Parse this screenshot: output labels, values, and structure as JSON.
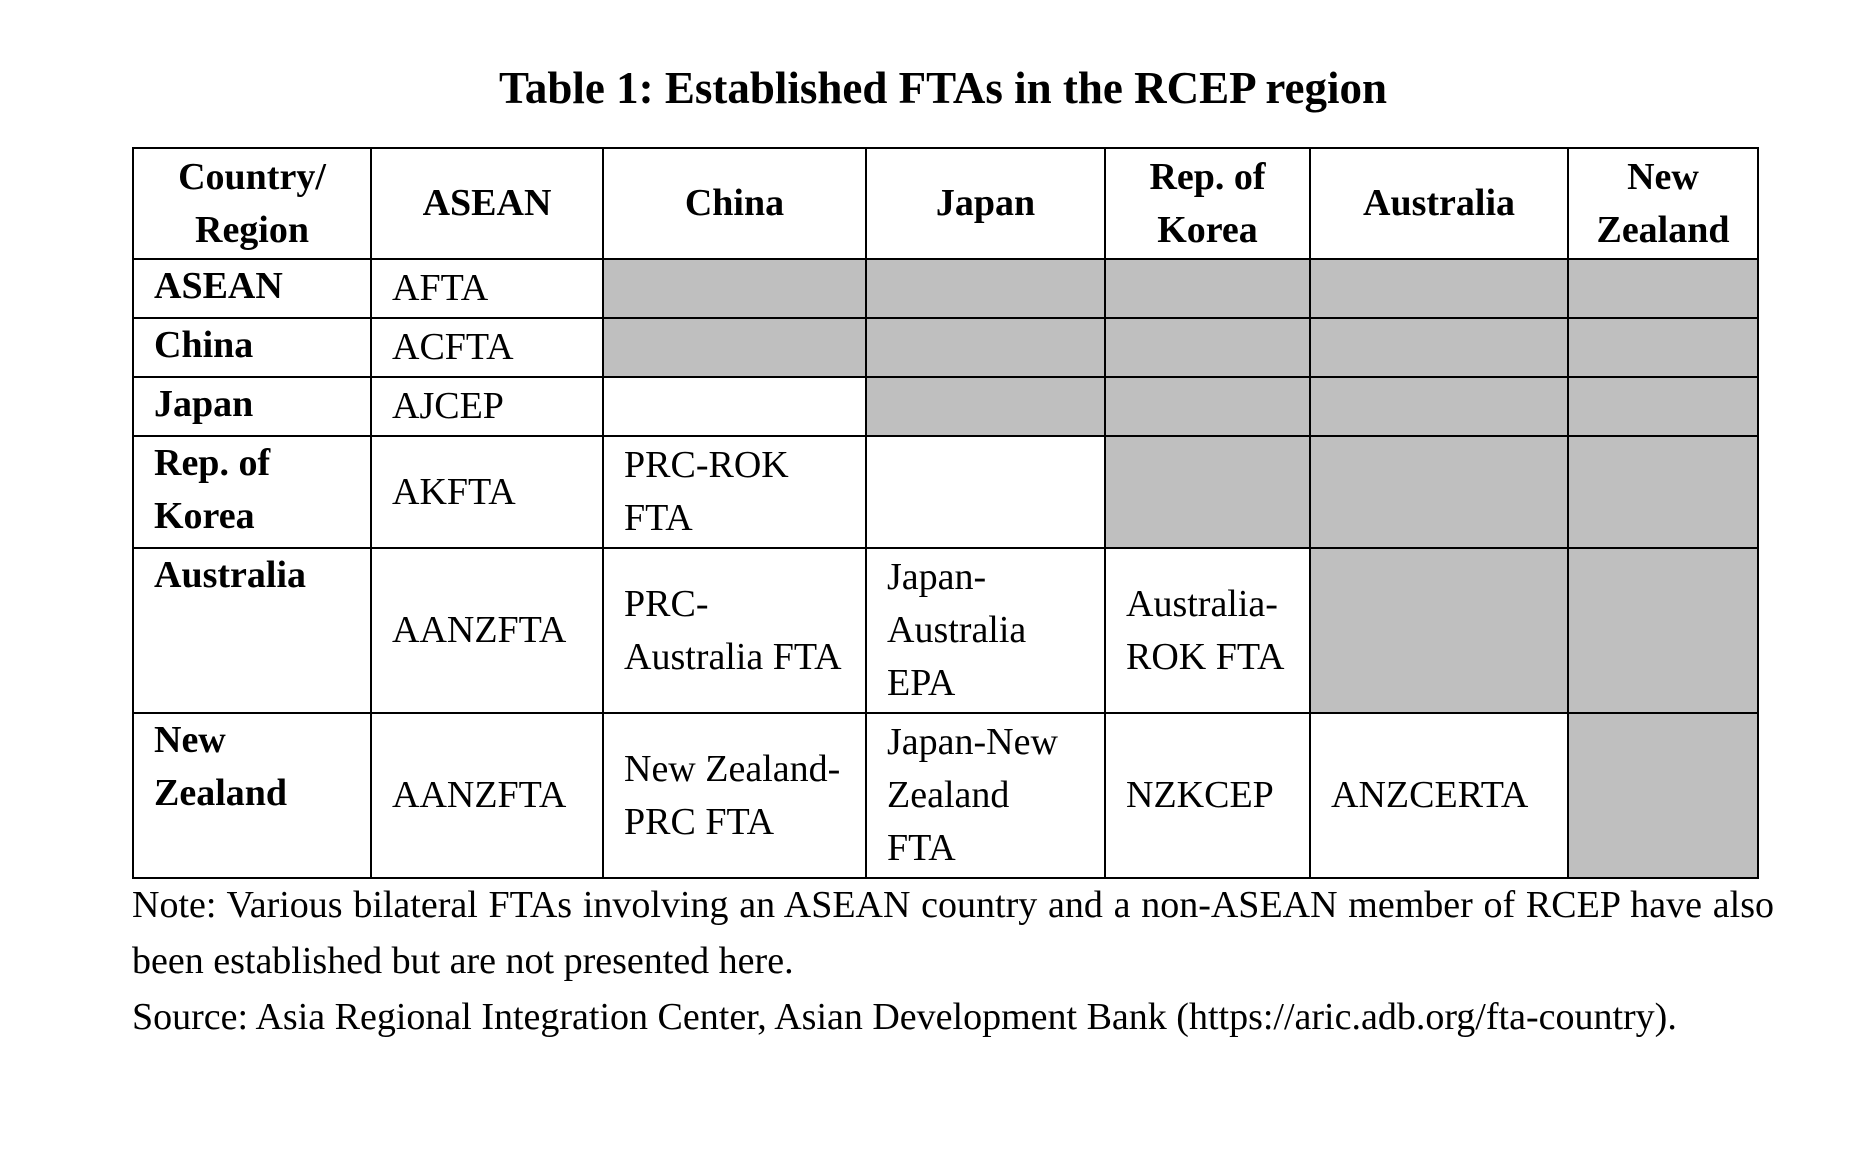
{
  "title": "Table 1: Established FTAs in the RCEP region",
  "table": {
    "header": {
      "corner": "Country/ Region",
      "columns": [
        "ASEAN",
        "China",
        "Japan",
        "Rep. of Korea",
        "Australia",
        "New Zealand"
      ]
    },
    "rows": [
      {
        "label": "ASEAN",
        "cells": [
          "AFTA",
          "",
          "",
          "",
          "",
          ""
        ],
        "shaded": [
          false,
          true,
          true,
          true,
          true,
          true
        ]
      },
      {
        "label": "China",
        "cells": [
          "ACFTA",
          "",
          "",
          "",
          "",
          ""
        ],
        "shaded": [
          false,
          true,
          true,
          true,
          true,
          true
        ]
      },
      {
        "label": "Japan",
        "cells": [
          "AJCEP",
          "",
          "",
          "",
          "",
          ""
        ],
        "shaded": [
          false,
          false,
          true,
          true,
          true,
          true
        ]
      },
      {
        "label": "Rep. of Korea",
        "cells": [
          "AKFTA",
          "PRC-ROK FTA",
          "",
          "",
          "",
          ""
        ],
        "shaded": [
          false,
          false,
          false,
          true,
          true,
          true
        ]
      },
      {
        "label": "Australia",
        "cells": [
          "AANZFTA",
          "PRC-Australia FTA",
          "Japan-Australia EPA",
          "Australia-ROK FTA",
          "",
          ""
        ],
        "shaded": [
          false,
          false,
          false,
          false,
          true,
          true
        ]
      },
      {
        "label": "New Zealand",
        "cells": [
          "AANZFTA",
          "New Zealand-PRC FTA",
          "Japan-New Zealand FTA",
          "NZKCEP",
          "ANZCERTA",
          ""
        ],
        "shaded": [
          false,
          false,
          false,
          false,
          false,
          true
        ]
      }
    ]
  },
  "note": "Note: Various bilateral FTAs involving an ASEAN country and a non-ASEAN member of RCEP have also been established but are not presented here.",
  "source": "Source: Asia Regional Integration Center, Asian Development Bank (https://aric.adb.org/fta-country)."
}
